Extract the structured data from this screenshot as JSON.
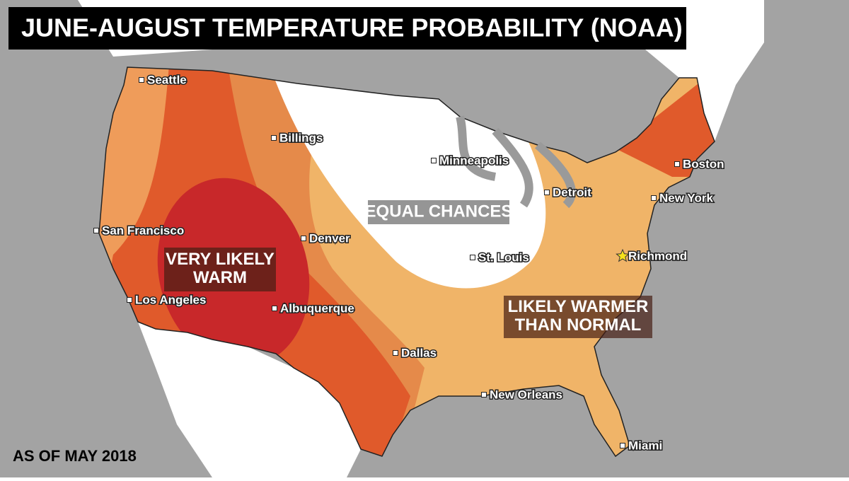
{
  "title": "JUNE-AUGUST TEMPERATURE PROBABILITY (NOAA)",
  "footnote": "AS OF MAY 2018",
  "regions": [
    "EQUAL CHANCES",
    "VERY LIKELY WARM",
    "LIKELY WARMER THAN NORMAL"
  ],
  "cities": [
    {
      "name": "Seattle",
      "marker": "square"
    },
    {
      "name": "Billings",
      "marker": "square"
    },
    {
      "name": "Minneapolis",
      "marker": "square"
    },
    {
      "name": "Boston",
      "marker": "square"
    },
    {
      "name": "Detroit",
      "marker": "square"
    },
    {
      "name": "New York",
      "marker": "square"
    },
    {
      "name": "San Francisco",
      "marker": "square"
    },
    {
      "name": "Denver",
      "marker": "square"
    },
    {
      "name": "St. Louis",
      "marker": "square"
    },
    {
      "name": "Richmond",
      "marker": "star"
    },
    {
      "name": "Los Angeles",
      "marker": "square"
    },
    {
      "name": "Albuquerque",
      "marker": "square"
    },
    {
      "name": "Dallas",
      "marker": "square"
    },
    {
      "name": "New Orleans",
      "marker": "square"
    },
    {
      "name": "Miami",
      "marker": "square"
    }
  ]
}
